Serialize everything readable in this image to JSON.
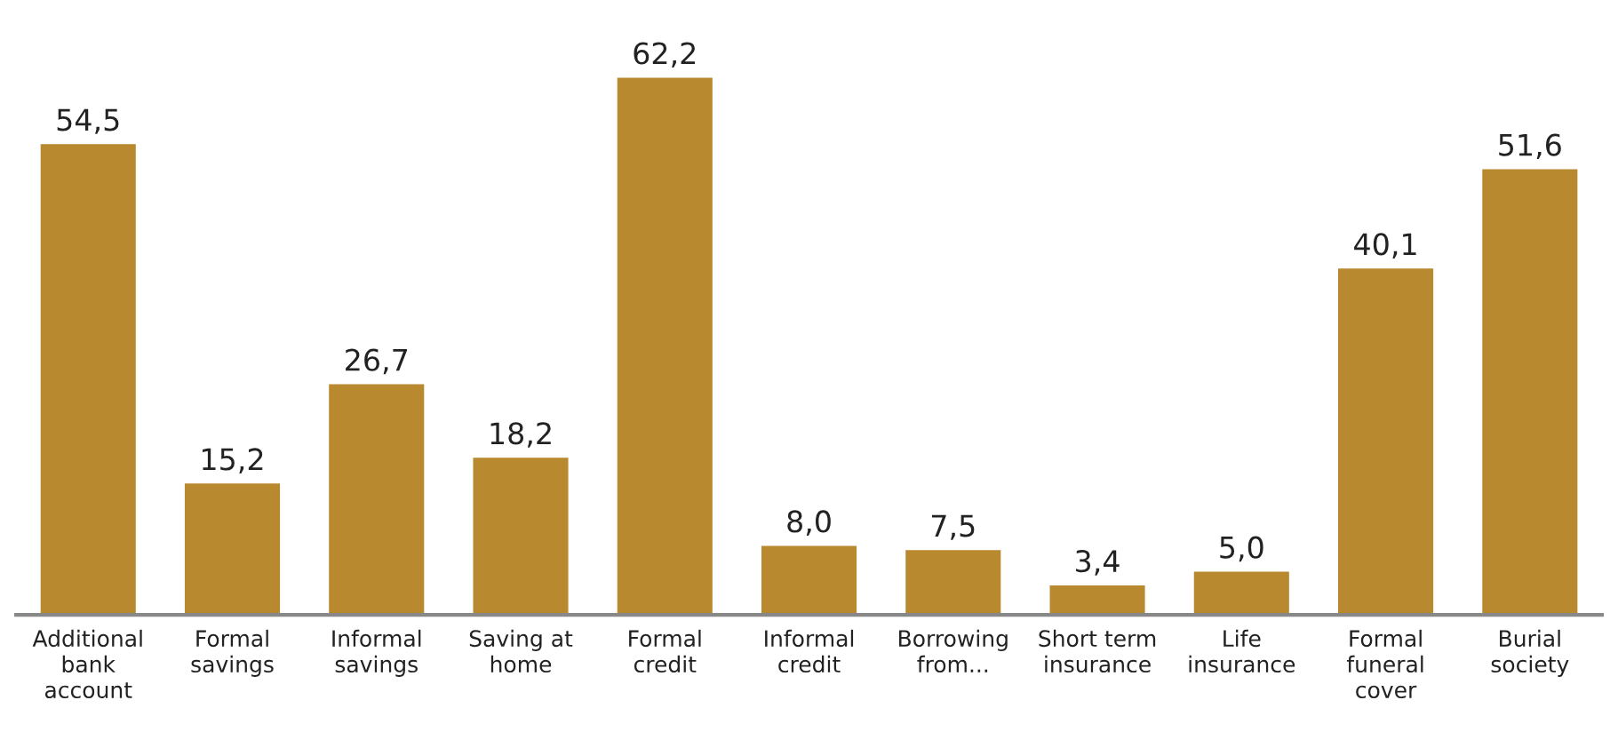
{
  "chart_data": {
    "type": "bar",
    "categories": [
      "Additional\nbank\naccount",
      "Formal\nsavings",
      "Informal\nsavings",
      "Saving at\nhome",
      "Formal\ncredit",
      "Informal\ncredit",
      "Borrowing\nfrom...",
      "Short term\ninsurance",
      "Life\ninsurance",
      "Formal\nfuneral\ncover",
      "Burial\nsociety"
    ],
    "values": [
      54.5,
      15.2,
      26.7,
      18.2,
      62.2,
      8.0,
      7.5,
      3.4,
      5.0,
      40.1,
      51.6
    ],
    "value_labels": [
      "54,5",
      "15,2",
      "26,7",
      "18,2",
      "62,2",
      "8,0",
      "7,5",
      "3,4",
      "5,0",
      "40,1",
      "51,6"
    ],
    "color": "#b8892e"
  }
}
